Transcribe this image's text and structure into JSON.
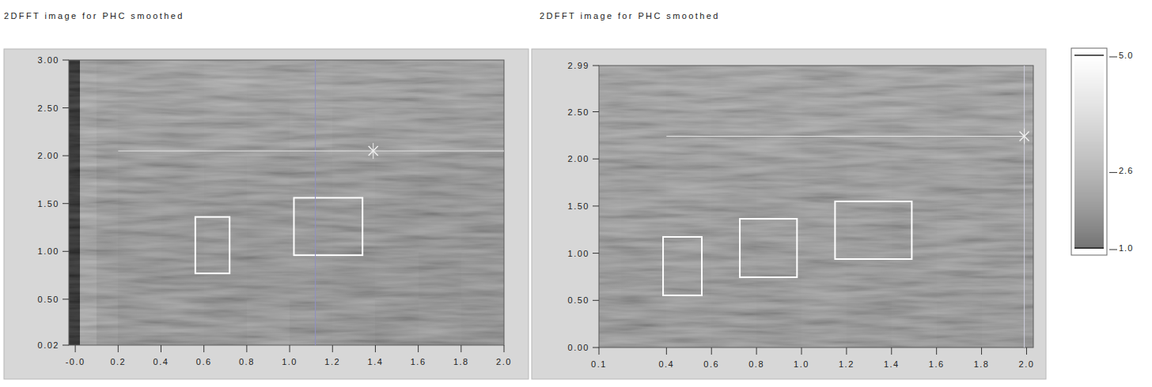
{
  "chart_data": [
    {
      "type": "heatmap",
      "title": "2DFFT image for PHC smoothed",
      "xlim": [
        -0.03,
        2.0
      ],
      "ylim": [
        0.02,
        3.0
      ],
      "xticks": [
        {
          "value": 0,
          "label": "-0.0"
        },
        0.2,
        0.4,
        0.6,
        0.8,
        {
          "value": 1,
          "label": "1.0"
        },
        1.2,
        1.4,
        1.6,
        1.8,
        {
          "value": 2,
          "label": "2.0"
        }
      ],
      "yticks": [
        0.02,
        {
          "value": 0.5,
          "label": "0.50"
        },
        {
          "value": 1,
          "label": "1.00"
        },
        {
          "value": 1.5,
          "label": "1.50"
        },
        {
          "value": 2,
          "label": "2.00"
        },
        {
          "value": 2.5,
          "label": "2.50"
        },
        {
          "value": 3,
          "label": "3.00"
        }
      ],
      "x_edges": [
        -0.03,
        0.02,
        0.1,
        0.2,
        0.4,
        0.6,
        0.8,
        1.0,
        1.2,
        1.4,
        1.6,
        1.8,
        2.0
      ],
      "y_edges": [
        0.02,
        0.5,
        1.0,
        1.5,
        2.0,
        2.5,
        3.0
      ],
      "cells": [
        [
          0,
          2.0,
          1.6,
          1.4,
          1.45,
          1.4,
          1.5,
          1.35,
          1.4,
          1.3,
          1.35,
          1.3
        ],
        [
          0,
          1.8,
          1.5,
          1.4,
          1.35,
          1.4,
          1.35,
          1.4,
          1.35,
          1.4,
          1.3,
          1.35
        ],
        [
          0,
          1.8,
          1.55,
          1.45,
          1.4,
          1.45,
          1.4,
          1.45,
          1.4,
          1.35,
          1.4,
          1.35
        ],
        [
          0,
          1.85,
          1.6,
          1.5,
          1.5,
          1.45,
          1.5,
          1.45,
          1.5,
          1.45,
          1.4,
          1.45
        ],
        [
          0,
          1.9,
          1.7,
          1.65,
          1.6,
          1.65,
          1.6,
          1.7,
          1.6,
          1.65,
          1.6,
          1.6
        ],
        [
          0,
          1.9,
          1.75,
          1.7,
          1.7,
          1.75,
          1.7,
          1.75,
          1.7,
          1.7,
          1.75,
          1.7
        ]
      ],
      "rois": [
        {
          "x": [
            0.56,
            0.72
          ],
          "y": [
            0.77,
            1.36
          ]
        },
        {
          "x": [
            1.02,
            1.34
          ],
          "y": [
            0.96,
            1.56
          ]
        }
      ],
      "cursor": {
        "x": 1.39,
        "y": 2.05,
        "hline_x": [
          0.2,
          2.0
        ],
        "vline_x": 1.12
      }
    },
    {
      "type": "heatmap",
      "title": "2DFFT image for PHC smoothed",
      "xlim": [
        0.1,
        2.03
      ],
      "ylim": [
        0.0,
        2.99
      ],
      "xticks": [
        0.1,
        0.4,
        0.6,
        0.8,
        {
          "value": 1,
          "label": "1.0"
        },
        1.2,
        1.4,
        1.6,
        1.8,
        {
          "value": 2,
          "label": "2.0"
        }
      ],
      "yticks": [
        {
          "value": 0,
          "label": "0.00"
        },
        {
          "value": 0.5,
          "label": "0.50"
        },
        {
          "value": 1,
          "label": "1.00"
        },
        {
          "value": 1.5,
          "label": "1.50"
        },
        {
          "value": 2,
          "label": "2.00"
        },
        {
          "value": 2.5,
          "label": "2.50"
        },
        2.99
      ],
      "x_edges": [
        0.1,
        0.2,
        0.4,
        0.6,
        0.8,
        1.0,
        1.2,
        1.4,
        1.6,
        1.8,
        2.03
      ],
      "y_edges": [
        0.0,
        0.5,
        1.0,
        1.5,
        2.0,
        2.5,
        2.99
      ],
      "cells": [
        [
          1.5,
          1.5,
          1.55,
          1.5,
          1.45,
          1.5,
          1.45,
          1.5,
          1.45,
          1.5
        ],
        [
          1.55,
          1.5,
          1.5,
          1.55,
          1.5,
          1.55,
          1.5,
          1.5,
          1.55,
          1.5
        ],
        [
          1.6,
          1.55,
          1.6,
          1.55,
          1.6,
          1.55,
          1.6,
          1.55,
          1.6,
          1.55
        ],
        [
          1.65,
          1.6,
          1.65,
          1.6,
          1.65,
          1.6,
          1.65,
          1.6,
          1.6,
          1.65
        ],
        [
          1.75,
          1.7,
          1.75,
          1.7,
          1.75,
          1.7,
          1.7,
          1.75,
          1.7,
          1.7
        ],
        [
          1.8,
          1.8,
          1.75,
          1.8,
          1.8,
          1.75,
          1.8,
          1.8,
          1.75,
          1.8
        ]
      ],
      "rois": [
        {
          "x": [
            0.385,
            0.557
          ],
          "y": [
            0.553,
            1.173
          ]
        },
        {
          "x": [
            0.726,
            0.98
          ],
          "y": [
            0.745,
            1.365
          ]
        },
        {
          "x": [
            1.149,
            1.49
          ],
          "y": [
            0.938,
            1.549
          ]
        }
      ],
      "cursor": {
        "x": 1.99,
        "y": 2.24,
        "hline_x": [
          0.4,
          1.99
        ],
        "vline_x": 1.99
      }
    }
  ],
  "colorbar": {
    "range": [
      1,
      5
    ],
    "ticks": [
      {
        "value": 5,
        "label": "5.0"
      },
      {
        "value": 2.6,
        "label": "2.6"
      },
      {
        "value": 1,
        "label": "1.0"
      }
    ]
  }
}
